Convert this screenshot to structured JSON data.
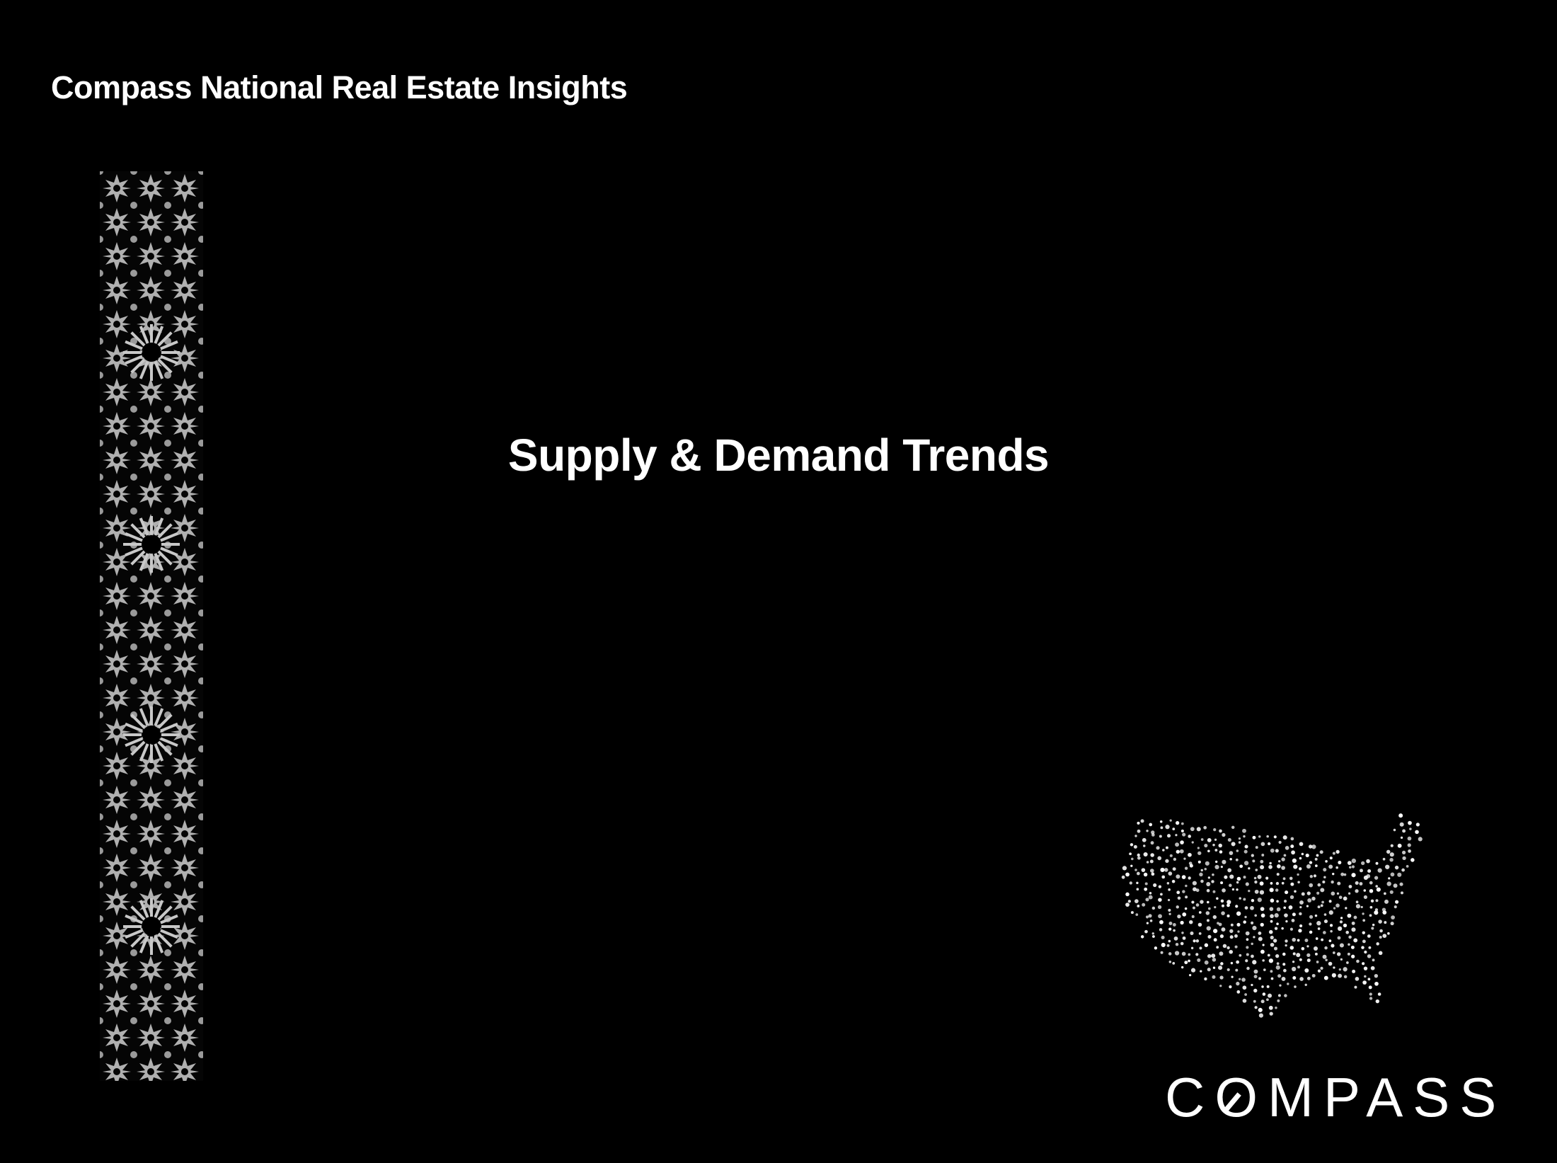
{
  "header": {
    "title": "Compass National Real Estate Insights"
  },
  "main": {
    "section_title": "Supply & Demand Trends"
  },
  "decor": {
    "pattern": "geometric-star-tile-strip",
    "map": "us-dot-map"
  },
  "brand": {
    "logo_text": "COMPASS"
  },
  "colors": {
    "background": "#000000",
    "text": "#ffffff",
    "pattern": "#b5b5b5"
  }
}
